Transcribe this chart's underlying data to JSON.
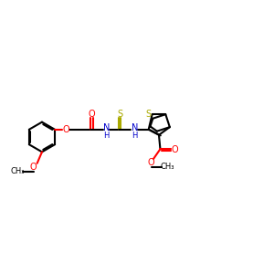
{
  "bg": "#ffffff",
  "bc": "#000000",
  "oc": "#ff0000",
  "nc": "#0000cc",
  "sc": "#aaaa00",
  "lw": 1.5,
  "fs": 7.0,
  "xlim": [
    0,
    10
  ],
  "ylim": [
    3.0,
    8.0
  ]
}
